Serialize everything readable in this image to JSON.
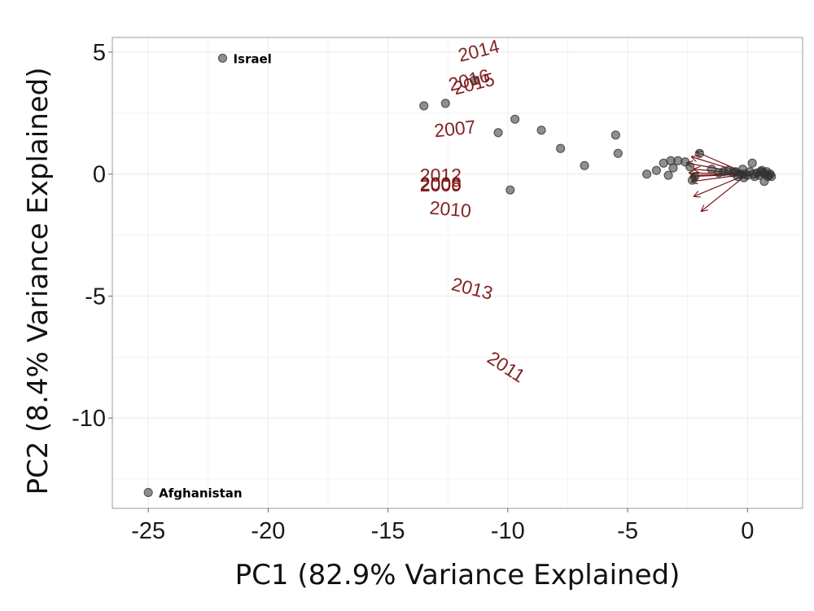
{
  "chart_data": {
    "type": "scatter",
    "title": "",
    "xlabel": "PC1 (82.9% Variance Explained)",
    "ylabel": "PC2 (8.4% Variance Explained)",
    "xlim": [
      -26.5,
      2.3
    ],
    "ylim": [
      -13.7,
      5.6
    ],
    "x_ticks": [
      -25,
      -20,
      -15,
      -10,
      -5,
      0
    ],
    "x_tick_labels": [
      "-25",
      "-20",
      "-15",
      "-10",
      "-5",
      "0"
    ],
    "y_ticks": [
      5,
      0,
      -5,
      -10
    ],
    "y_tick_labels": [
      "5",
      "0",
      "-5",
      "-10"
    ],
    "grid": true,
    "point_color": "#333333",
    "loading_color": "#7a1010",
    "background": "#ffffff",
    "grid_color": "#ececec",
    "points": [
      {
        "x": -21.9,
        "y": 4.75,
        "label": "Israel"
      },
      {
        "x": -25.0,
        "y": -13.05,
        "label": "Afghanistan"
      },
      {
        "x": -13.5,
        "y": 2.8
      },
      {
        "x": -12.6,
        "y": 2.9
      },
      {
        "x": -11.4,
        "y": 3.85
      },
      {
        "x": -10.4,
        "y": 1.7
      },
      {
        "x": -9.7,
        "y": 2.25
      },
      {
        "x": -8.6,
        "y": 1.8
      },
      {
        "x": -7.8,
        "y": 1.05
      },
      {
        "x": -5.5,
        "y": 1.6
      },
      {
        "x": -5.4,
        "y": 0.85
      },
      {
        "x": -6.8,
        "y": 0.35
      },
      {
        "x": -9.9,
        "y": -0.65
      },
      {
        "x": -4.2,
        "y": 0.0
      },
      {
        "x": -3.8,
        "y": 0.15
      },
      {
        "x": -3.5,
        "y": 0.45
      },
      {
        "x": -3.2,
        "y": 0.55
      },
      {
        "x": -3.1,
        "y": 0.25
      },
      {
        "x": -3.3,
        "y": -0.05
      },
      {
        "x": -2.9,
        "y": 0.55
      },
      {
        "x": -2.6,
        "y": 0.5
      },
      {
        "x": -2.4,
        "y": 0.3
      },
      {
        "x": -2.2,
        "y": -0.1
      },
      {
        "x": -2.3,
        "y": -0.25
      },
      {
        "x": -2.0,
        "y": 0.85
      },
      {
        "x": -1.5,
        "y": 0.2
      },
      {
        "x": -1.2,
        "y": 0.05
      },
      {
        "x": -1.0,
        "y": 0.1
      },
      {
        "x": -0.8,
        "y": 0.15
      },
      {
        "x": -0.6,
        "y": 0.05
      },
      {
        "x": -0.5,
        "y": 0.1
      },
      {
        "x": -0.4,
        "y": -0.1
      },
      {
        "x": -0.3,
        "y": 0.0
      },
      {
        "x": -0.2,
        "y": 0.2
      },
      {
        "x": -0.1,
        "y": 0.0
      },
      {
        "x": 0.0,
        "y": -0.05
      },
      {
        "x": 0.1,
        "y": 0.1
      },
      {
        "x": 0.2,
        "y": 0.45
      },
      {
        "x": 0.3,
        "y": -0.1
      },
      {
        "x": 0.4,
        "y": 0.05
      },
      {
        "x": 0.5,
        "y": -0.05
      },
      {
        "x": 0.6,
        "y": 0.15
      },
      {
        "x": 0.7,
        "y": -0.3
      },
      {
        "x": 0.75,
        "y": 0.0
      },
      {
        "x": 0.8,
        "y": 0.1
      },
      {
        "x": 0.85,
        "y": -0.1
      },
      {
        "x": 0.9,
        "y": -0.05
      },
      {
        "x": 0.95,
        "y": 0.0
      },
      {
        "x": 1.0,
        "y": -0.1
      },
      {
        "x": 0.55,
        "y": 0.1
      },
      {
        "x": 0.25,
        "y": 0.0
      },
      {
        "x": -0.15,
        "y": -0.15
      },
      {
        "x": 0.65,
        "y": 0.05
      }
    ],
    "loadings": [
      {
        "label": "2014",
        "x": -11.2,
        "y": 5.0,
        "angle": 14
      },
      {
        "label": "2016",
        "x": -11.6,
        "y": 3.8,
        "angle": 14
      },
      {
        "label": "2015",
        "x": -11.4,
        "y": 3.65,
        "angle": 14
      },
      {
        "label": "2007",
        "x": -12.2,
        "y": 1.8,
        "angle": 6
      },
      {
        "label": "2012",
        "x": -12.8,
        "y": -0.1,
        "angle": 0
      },
      {
        "label": "2008",
        "x": -12.8,
        "y": -0.45,
        "angle": 0
      },
      {
        "label": "2009",
        "x": -12.8,
        "y": -0.5,
        "angle": 0
      },
      {
        "label": "2010",
        "x": -12.4,
        "y": -1.5,
        "angle": -5
      },
      {
        "label": "2013",
        "x": -11.5,
        "y": -4.75,
        "angle": -14
      },
      {
        "label": "2011",
        "x": -10.1,
        "y": -7.95,
        "angle": -33
      }
    ],
    "arrows": [
      {
        "x": -2.1,
        "y": 0.9
      },
      {
        "x": -2.3,
        "y": 0.7
      },
      {
        "x": -2.5,
        "y": 0.45
      },
      {
        "x": -2.2,
        "y": 0.2
      },
      {
        "x": -2.4,
        "y": 0.05
      },
      {
        "x": -2.3,
        "y": -0.05
      },
      {
        "x": -2.35,
        "y": -0.1
      },
      {
        "x": -2.3,
        "y": -0.3
      },
      {
        "x": -2.2,
        "y": -0.9
      },
      {
        "x": -1.9,
        "y": -1.5
      }
    ]
  }
}
